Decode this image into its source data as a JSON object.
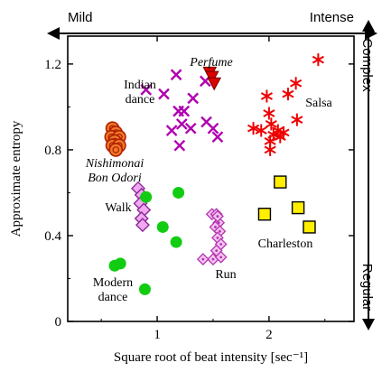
{
  "chart_data": {
    "type": "scatter",
    "xlabel": "Square root of beat intensity [sec⁻¹]",
    "ylabel": "Approximate entropy",
    "xlim": [
      0.2,
      2.76
    ],
    "ylim": [
      0,
      1.33
    ],
    "xticks": [
      1,
      2
    ],
    "xtick_labels": [
      "1",
      "2"
    ],
    "yticks": [
      0,
      0.4,
      0.8,
      1.2
    ],
    "ytick_labels": [
      "0",
      "0.4",
      "0.8",
      "1.2"
    ],
    "grid": false,
    "x_arrow": {
      "left_label": "Mild",
      "right_label": "Intense"
    },
    "y_arrow": {
      "top_label": "Complex",
      "bottom_label": "Regular"
    },
    "series": [
      {
        "name": "Indian dance",
        "label": [
          "Indian",
          "dance"
        ],
        "italic": false,
        "marker": "x",
        "color": "#b000b0",
        "points": [
          [
            0.9,
            1.08
          ],
          [
            1.17,
            1.15
          ],
          [
            1.06,
            1.06
          ],
          [
            1.19,
            0.98
          ],
          [
            1.24,
            0.98
          ],
          [
            1.32,
            1.04
          ],
          [
            1.22,
            0.92
          ],
          [
            1.3,
            0.9
          ],
          [
            1.13,
            0.89
          ],
          [
            1.2,
            0.82
          ],
          [
            1.44,
            0.93
          ],
          [
            1.5,
            0.9
          ],
          [
            1.54,
            0.86
          ],
          [
            1.43,
            1.12
          ]
        ]
      },
      {
        "name": "Perfume",
        "label": [
          "Perfume"
        ],
        "italic": true,
        "marker": "triangle-down",
        "color": "#dd0000",
        "points": [
          [
            1.47,
            1.16
          ],
          [
            1.49,
            1.14
          ],
          [
            1.51,
            1.11
          ]
        ]
      },
      {
        "name": "Salsa",
        "label": [
          "Salsa"
        ],
        "italic": false,
        "marker": "asterisk",
        "color": "#ee0000",
        "points": [
          [
            2.44,
            1.22
          ],
          [
            2.24,
            1.11
          ],
          [
            2.17,
            1.06
          ],
          [
            1.98,
            1.05
          ],
          [
            1.86,
            0.9
          ],
          [
            1.93,
            0.89
          ],
          [
            2.02,
            0.92
          ],
          [
            2.04,
            0.87
          ],
          [
            2.08,
            0.89
          ],
          [
            2.1,
            0.86
          ],
          [
            2.0,
            0.97
          ],
          [
            2.01,
            0.84
          ],
          [
            2.01,
            0.8
          ],
          [
            2.25,
            0.94
          ],
          [
            2.13,
            0.88
          ]
        ]
      },
      {
        "name": "Nishimonai Bon Odori",
        "label": [
          "Nishimonai",
          "Bon Odori"
        ],
        "italic": true,
        "marker": "circle-target",
        "color": "#d05010",
        "points": [
          [
            0.6,
            0.9
          ],
          [
            0.63,
            0.88
          ],
          [
            0.59,
            0.86
          ],
          [
            0.66,
            0.86
          ],
          [
            0.62,
            0.84
          ],
          [
            0.6,
            0.82
          ],
          [
            0.66,
            0.82
          ],
          [
            0.63,
            0.8
          ]
        ]
      },
      {
        "name": "Walk",
        "label": [
          "Walk"
        ],
        "italic": false,
        "marker": "diamond",
        "color": "#b040c0",
        "points": [
          [
            0.83,
            0.62
          ],
          [
            0.86,
            0.59
          ],
          [
            0.85,
            0.55
          ],
          [
            0.88,
            0.52
          ],
          [
            0.86,
            0.48
          ],
          [
            0.87,
            0.45
          ]
        ]
      },
      {
        "name": "Modern dance",
        "label": [
          "Modern",
          "dance"
        ],
        "italic": false,
        "marker": "circle",
        "color": "#11cc11",
        "points": [
          [
            1.19,
            0.6
          ],
          [
            0.9,
            0.58
          ],
          [
            1.05,
            0.44
          ],
          [
            1.17,
            0.37
          ],
          [
            0.67,
            0.27
          ],
          [
            0.62,
            0.26
          ],
          [
            0.89,
            0.15
          ]
        ]
      },
      {
        "name": "Run",
        "label": [
          "Run"
        ],
        "italic": false,
        "marker": "diamond-dot",
        "color": "#d040d0",
        "points": [
          [
            1.49,
            0.5
          ],
          [
            1.53,
            0.5
          ],
          [
            1.55,
            0.46
          ],
          [
            1.52,
            0.44
          ],
          [
            1.56,
            0.42
          ],
          [
            1.54,
            0.39
          ],
          [
            1.57,
            0.36
          ],
          [
            1.53,
            0.33
          ],
          [
            1.5,
            0.29
          ],
          [
            1.41,
            0.29
          ],
          [
            1.54,
            0.49
          ],
          [
            1.57,
            0.3
          ]
        ]
      },
      {
        "name": "Charleston",
        "label": [
          "Charleston"
        ],
        "italic": false,
        "marker": "square",
        "color": "#ffee00",
        "points": [
          [
            2.1,
            0.65
          ],
          [
            1.96,
            0.5
          ],
          [
            2.26,
            0.53
          ],
          [
            2.36,
            0.44
          ]
        ]
      }
    ]
  }
}
